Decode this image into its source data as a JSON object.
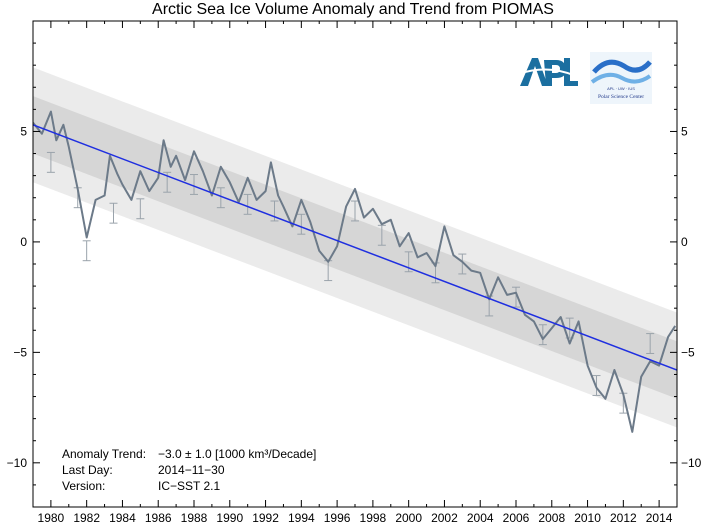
{
  "chart_data": {
    "type": "line",
    "title": "Arctic Sea Ice Volume Anomaly and Trend from PIOMAS",
    "xlabel": "",
    "ylabel": "",
    "xlim": [
      1979,
      2015
    ],
    "ylim": [
      -12,
      10
    ],
    "x_ticks": [
      "1980",
      "1982",
      "1984",
      "1986",
      "1988",
      "1990",
      "1992",
      "1994",
      "1996",
      "1998",
      "2000",
      "2002",
      "2004",
      "2006",
      "2008",
      "2010",
      "2012",
      "2014"
    ],
    "y_ticks": [
      "5",
      "0",
      "-5",
      "-10"
    ],
    "grid": false,
    "trend": {
      "x": [
        1979,
        2015
      ],
      "y": [
        5.3,
        -5.8
      ],
      "color": "#1f2fe0"
    },
    "bands": [
      {
        "name": "outer",
        "offset": 2.6,
        "color": "#ebebeb"
      },
      {
        "name": "inner",
        "offset": 1.3,
        "color": "#d6d6d6"
      }
    ],
    "series": [
      {
        "color": "#6c7a89",
        "x": [
          1979.0,
          1979.5,
          1980.0,
          1980.3,
          1980.7,
          1981.0,
          1981.5,
          1982.0,
          1982.5,
          1983.0,
          1983.3,
          1983.7,
          1984.0,
          1984.5,
          1985.0,
          1985.5,
          1986.0,
          1986.3,
          1986.7,
          1987.0,
          1987.5,
          1988.0,
          1988.5,
          1989.0,
          1989.5,
          1990.0,
          1990.5,
          1991.0,
          1991.5,
          1992.0,
          1992.3,
          1992.7,
          1993.0,
          1993.5,
          1994.0,
          1994.5,
          1995.0,
          1995.5,
          1996.0,
          1996.5,
          1997.0,
          1997.5,
          1998.0,
          1998.5,
          1999.0,
          1999.5,
          2000.0,
          2000.5,
          2001.0,
          2001.5,
          2002.0,
          2002.5,
          2003.0,
          2003.5,
          2004.0,
          2004.5,
          2005.0,
          2005.5,
          2006.0,
          2006.5,
          2007.0,
          2007.5,
          2008.0,
          2008.5,
          2009.0,
          2009.5,
          2010.0,
          2010.5,
          2011.0,
          2011.5,
          2012.0,
          2012.5,
          2013.0,
          2013.5,
          2014.0,
          2014.5,
          2014.9
        ],
        "y": [
          5.4,
          4.9,
          5.9,
          4.6,
          5.3,
          4.3,
          2.4,
          0.2,
          1.9,
          2.1,
          3.9,
          3.1,
          2.6,
          1.9,
          3.2,
          2.3,
          2.9,
          4.6,
          3.4,
          3.9,
          2.8,
          4.1,
          3.2,
          2.1,
          3.4,
          2.7,
          1.8,
          2.9,
          1.9,
          2.3,
          3.6,
          2.1,
          1.6,
          0.7,
          1.9,
          0.9,
          -0.4,
          -0.9,
          -0.2,
          1.6,
          2.4,
          1.1,
          1.5,
          0.8,
          1.0,
          -0.2,
          0.4,
          -0.7,
          -0.5,
          -1.1,
          0.7,
          -0.6,
          -0.9,
          -1.3,
          -1.4,
          -2.6,
          -1.6,
          -2.4,
          -2.3,
          -3.3,
          -3.6,
          -4.4,
          -3.9,
          -3.4,
          -4.6,
          -3.6,
          -5.6,
          -6.6,
          -7.1,
          -5.8,
          -6.9,
          -8.6,
          -6.1,
          -5.4,
          -5.6,
          -4.3,
          -3.8
        ]
      }
    ],
    "error_bars": {
      "x": [
        1980,
        1981.5,
        1982,
        1983.5,
        1985,
        1986.5,
        1988,
        1989.5,
        1991,
        1992.5,
        1994,
        1995.5,
        1997,
        1998.5,
        2000,
        2001.5,
        2003,
        2004.5,
        2006,
        2007.5,
        2009,
        2010.5,
        2012,
        2013.5
      ],
      "y": [
        3.6,
        2.0,
        -0.4,
        1.3,
        1.5,
        2.7,
        2.6,
        2.0,
        1.7,
        1.4,
        0.8,
        -1.3,
        1.4,
        0.3,
        -0.9,
        -1.4,
        -1.0,
        -2.9,
        -2.5,
        -4.2,
        -3.9,
        -6.5,
        -7.3,
        -4.6
      ],
      "half": 0.45
    }
  },
  "annotation": {
    "trend_label": "Anomaly Trend:",
    "trend_value": "−3.0 ± 1.0 [1000 km³/Decade]",
    "lastday_label": "Last Day:",
    "lastday_value": "2014−11−30",
    "version_label": "Version:",
    "version_value": "IC−SST 2.1"
  },
  "logos": {
    "apl": "APL",
    "psc_text": "Polar Science Center",
    "psc_sub": "APL · UW · IUS"
  }
}
